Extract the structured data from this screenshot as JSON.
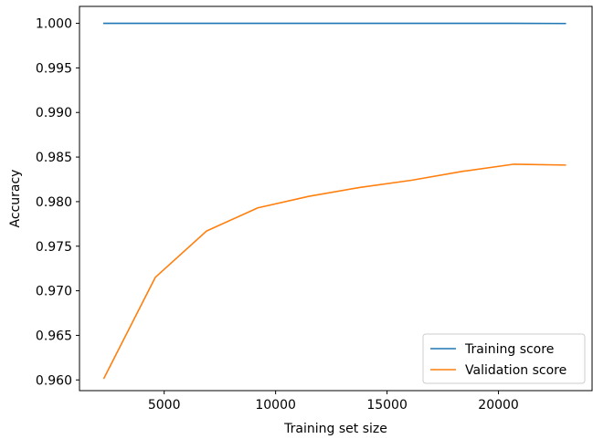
{
  "chart_data": {
    "type": "line",
    "title": "",
    "xlabel": "Training set size",
    "ylabel": "Accuracy",
    "xlim": [
      1200,
      24200
    ],
    "ylim": [
      0.9588,
      1.0019
    ],
    "xticks": [
      5000,
      10000,
      15000,
      20000
    ],
    "xtick_labels": [
      "5000",
      "10000",
      "15000",
      "20000"
    ],
    "yticks": [
      0.96,
      0.965,
      0.97,
      0.975,
      0.98,
      0.985,
      0.99,
      0.995,
      1.0
    ],
    "ytick_labels": [
      "0.960",
      "0.965",
      "0.970",
      "0.975",
      "0.980",
      "0.985",
      "0.990",
      "0.995",
      "1.000"
    ],
    "grid": false,
    "legend_position": "lower-right",
    "x": [
      2300,
      4600,
      6900,
      9200,
      11500,
      13800,
      16100,
      18400,
      20700,
      23000
    ],
    "series": [
      {
        "name": "Training score",
        "color": "#1f77b4",
        "values": [
          1.0,
          1.0,
          1.0,
          1.0,
          1.0,
          1.0,
          1.0,
          1.0,
          1.0,
          0.99998
        ]
      },
      {
        "name": "Validation score",
        "color": "#ff7f0e",
        "values": [
          0.9602,
          0.9715,
          0.9767,
          0.9793,
          0.9806,
          0.9816,
          0.9824,
          0.9834,
          0.9842,
          0.9841
        ]
      }
    ]
  }
}
